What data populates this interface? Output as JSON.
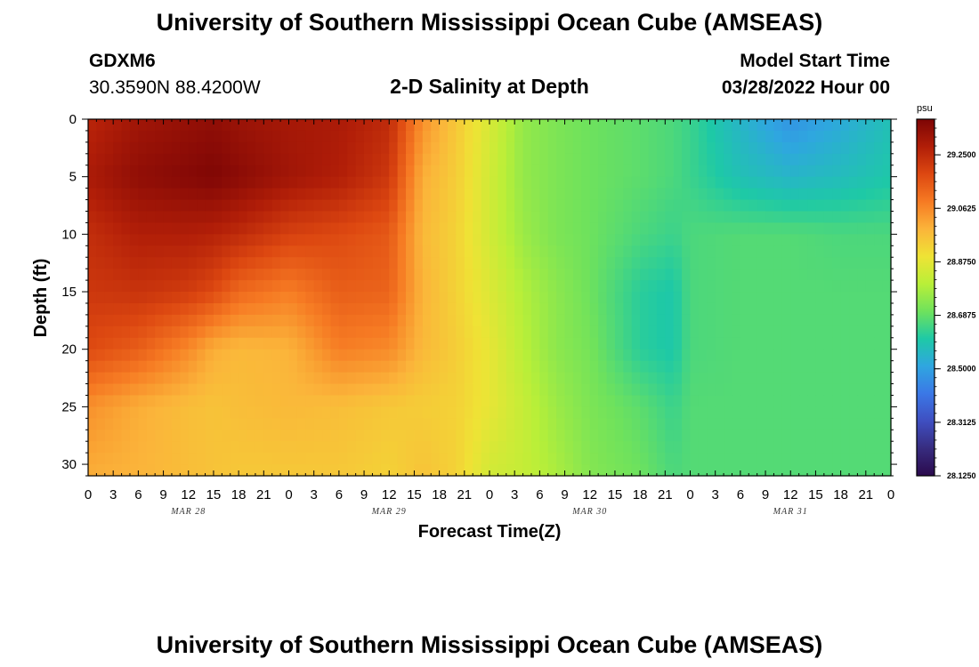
{
  "page": {
    "title": "University of Southern Mississippi Ocean Cube (AMSEAS)",
    "footer_title": "University of Southern Mississippi Ocean Cube (AMSEAS)",
    "station_id": "GDXM6",
    "coordinates": "30.3590N  88.4200W",
    "subtitle": "2-D Salinity at Depth",
    "model_start_label": "Model Start Time",
    "model_start_time": "03/28/2022 Hour 00"
  },
  "chart_data": {
    "type": "heatmap",
    "title": "2-D Salinity at Depth",
    "xlabel": "Forecast Time(Z)",
    "ylabel": "Depth (ft)",
    "x_range_hours": [
      0,
      96
    ],
    "ylim": [
      0,
      31
    ],
    "y_inverted": true,
    "x_tick_labels": [
      "0",
      "3",
      "6",
      "9",
      "12",
      "15",
      "18",
      "21",
      "0",
      "3",
      "6",
      "9",
      "12",
      "15",
      "18",
      "21",
      "0",
      "3",
      "6",
      "9",
      "12",
      "15",
      "18",
      "21",
      "0",
      "3",
      "6",
      "9",
      "12",
      "15",
      "18",
      "21",
      "0"
    ],
    "y_tick_labels": [
      "0",
      "5",
      "10",
      "15",
      "20",
      "25",
      "30"
    ],
    "y_tick_values": [
      0,
      5,
      10,
      15,
      20,
      25,
      30
    ],
    "day_labels": [
      {
        "label": "MAR 28",
        "hour": 12
      },
      {
        "label": "MAR 29",
        "hour": 36
      },
      {
        "label": "MAR 30",
        "hour": 60
      },
      {
        "label": "MAR 31",
        "hour": 84
      }
    ],
    "colorbar": {
      "unit": "psu",
      "min": 28.125,
      "max": 29.375,
      "tick_labels": [
        "29.2500",
        "29.0625",
        "28.8750",
        "28.6875",
        "28.5000",
        "28.3125",
        "28.1250"
      ],
      "tick_values": [
        29.25,
        29.0625,
        28.875,
        28.6875,
        28.5,
        28.3125,
        28.125
      ],
      "colors": [
        "#2b0a4d",
        "#372c7f",
        "#3f4fc1",
        "#3b78e6",
        "#2fa6e0",
        "#1ec9a6",
        "#6fe25c",
        "#b9ef38",
        "#efe335",
        "#fbb43a",
        "#f67a23",
        "#dd4811",
        "#b11e08",
        "#7d0505"
      ]
    },
    "depths_ft": [
      0,
      5,
      10,
      15,
      20,
      25,
      31
    ],
    "times_hr": [
      0,
      6,
      12,
      15,
      18,
      24,
      30,
      36,
      40,
      44,
      48,
      52,
      56,
      60,
      66,
      70,
      72,
      78,
      84,
      90,
      96
    ],
    "salinity_psu": [
      [
        29.26,
        29.31,
        29.33,
        29.34,
        29.32,
        29.3,
        29.29,
        29.25,
        29.05,
        28.95,
        28.85,
        28.75,
        28.72,
        28.7,
        28.68,
        28.66,
        28.64,
        28.55,
        28.47,
        28.52,
        28.58
      ],
      [
        29.29,
        29.34,
        29.36,
        29.37,
        29.35,
        29.31,
        29.28,
        29.22,
        29.0,
        28.94,
        28.84,
        28.75,
        28.72,
        28.7,
        28.68,
        28.66,
        28.64,
        28.58,
        28.55,
        28.57,
        28.6
      ],
      [
        29.24,
        29.28,
        29.28,
        29.27,
        29.25,
        29.2,
        29.18,
        29.15,
        28.98,
        28.93,
        28.84,
        28.76,
        28.72,
        28.7,
        28.66,
        28.64,
        28.66,
        28.67,
        28.67,
        28.66,
        28.66
      ],
      [
        29.22,
        29.23,
        29.21,
        29.18,
        29.12,
        29.08,
        29.14,
        29.13,
        28.99,
        28.93,
        28.86,
        28.79,
        28.74,
        28.7,
        28.62,
        28.6,
        28.66,
        28.67,
        28.67,
        28.67,
        28.67
      ],
      [
        29.18,
        29.14,
        29.06,
        29.0,
        28.98,
        28.99,
        29.08,
        29.06,
        28.98,
        28.94,
        28.88,
        28.8,
        28.74,
        28.71,
        28.62,
        28.6,
        28.66,
        28.67,
        28.67,
        28.67,
        28.67
      ],
      [
        29.05,
        29.0,
        28.97,
        28.96,
        28.97,
        28.98,
        28.97,
        28.95,
        28.94,
        28.93,
        28.88,
        28.82,
        28.76,
        28.72,
        28.68,
        28.64,
        28.67,
        28.67,
        28.67,
        28.67,
        28.67
      ],
      [
        29.0,
        28.99,
        28.97,
        28.96,
        28.95,
        28.95,
        28.95,
        28.93,
        28.96,
        28.93,
        28.84,
        28.82,
        28.78,
        28.73,
        28.7,
        28.66,
        28.67,
        28.67,
        28.67,
        28.67,
        28.67
      ]
    ],
    "grid": false,
    "legend": "colorbar-right"
  }
}
